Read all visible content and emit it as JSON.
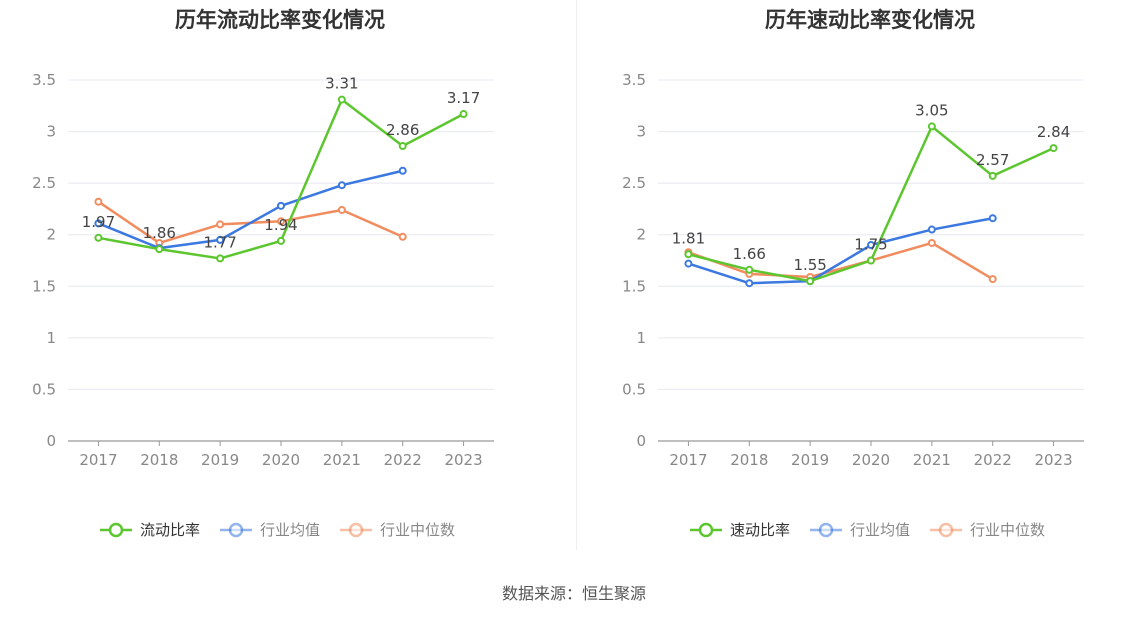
{
  "source": "数据来源：恒生聚源",
  "chart_data": [
    {
      "type": "line",
      "title": "历年流动比率变化情况",
      "categories": [
        "2017",
        "2018",
        "2019",
        "2020",
        "2021",
        "2022",
        "2023"
      ],
      "ylim": [
        0,
        3.5
      ],
      "yticks": [
        "0",
        "0.5",
        "1",
        "1.5",
        "2",
        "2.5",
        "3",
        "3.5"
      ],
      "grid": true,
      "legend_position": "bottom",
      "series": [
        {
          "name": "流动比率",
          "color": "#5cc62f",
          "labeled": true,
          "values": [
            1.97,
            1.86,
            1.77,
            1.94,
            3.31,
            2.86,
            3.17
          ],
          "labels": [
            "1.97",
            "1.86",
            "1.77",
            "1.94",
            "3.31",
            "2.86",
            "3.17"
          ]
        },
        {
          "name": "行业均值",
          "color": "#3b78e0",
          "labeled": false,
          "values": [
            2.11,
            1.87,
            1.95,
            2.28,
            2.48,
            2.62,
            null
          ]
        },
        {
          "name": "行业中位数",
          "color": "#f08c5e",
          "labeled": false,
          "values": [
            2.32,
            1.92,
            2.1,
            2.13,
            2.24,
            1.98,
            null
          ]
        }
      ]
    },
    {
      "type": "line",
      "title": "历年速动比率变化情况",
      "categories": [
        "2017",
        "2018",
        "2019",
        "2020",
        "2021",
        "2022",
        "2023"
      ],
      "ylim": [
        0,
        3.5
      ],
      "yticks": [
        "0",
        "0.5",
        "1",
        "1.5",
        "2",
        "2.5",
        "3",
        "3.5"
      ],
      "grid": true,
      "legend_position": "bottom",
      "series": [
        {
          "name": "速动比率",
          "color": "#5cc62f",
          "labeled": true,
          "values": [
            1.81,
            1.66,
            1.55,
            1.75,
            3.05,
            2.57,
            2.84
          ],
          "labels": [
            "1.81",
            "1.66",
            "1.55",
            "1.75",
            "3.05",
            "2.57",
            "2.84"
          ]
        },
        {
          "name": "行业均值",
          "color": "#3b78e0",
          "labeled": false,
          "values": [
            1.72,
            1.53,
            1.55,
            1.9,
            2.05,
            2.16,
            null
          ]
        },
        {
          "name": "行业中位数",
          "color": "#f08c5e",
          "labeled": false,
          "values": [
            1.83,
            1.62,
            1.59,
            1.75,
            1.92,
            1.57,
            null
          ]
        }
      ]
    }
  ]
}
